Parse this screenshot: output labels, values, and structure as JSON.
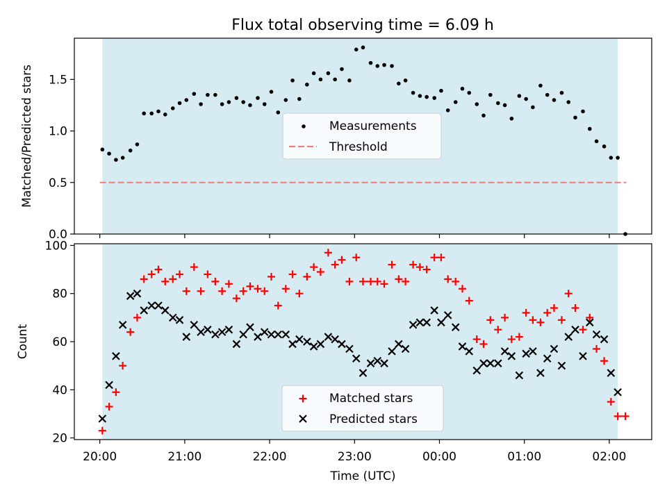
{
  "figure": {
    "title": "Flux total observing time = 6.09 h",
    "xlabel": "Time (UTC)"
  },
  "colors": {
    "observing_window": "#add8e6",
    "measurements": "#000000",
    "threshold": "#f08080",
    "matched": "#ff0000",
    "predicted": "#000000"
  },
  "chart_data": [
    {
      "type": "scatter",
      "title": "Flux total observing time = 6.09 h",
      "xlabel": "",
      "ylabel": "Matched/Predicted stars",
      "x_unit": "UTC time, hours since 20:00",
      "xlim": [
        -0.3,
        6.5
      ],
      "ylim": [
        0,
        1.9
      ],
      "yticks": [
        0.0,
        0.5,
        1.0,
        1.5
      ],
      "ytick_labels": [
        "0.0",
        "0.5",
        "1.0",
        "1.5"
      ],
      "xticks_no_labels": true,
      "shaded_span": [
        0.03,
        6.1
      ],
      "legend_position": "center",
      "legend": [
        "Measurements",
        "Threshold"
      ],
      "threshold": {
        "name": "Threshold",
        "value": 0.5,
        "x": [
          0.0,
          6.2
        ],
        "style": "dashed"
      },
      "series": [
        {
          "name": "Measurements",
          "marker": "dot",
          "x": [
            0.03,
            0.11,
            0.19,
            0.27,
            0.36,
            0.44,
            0.52,
            0.61,
            0.69,
            0.77,
            0.86,
            0.94,
            1.02,
            1.11,
            1.19,
            1.27,
            1.36,
            1.44,
            1.52,
            1.61,
            1.69,
            1.77,
            1.86,
            1.94,
            2.02,
            2.1,
            2.19,
            2.27,
            2.35,
            2.44,
            2.52,
            2.6,
            2.69,
            2.77,
            2.85,
            2.94,
            3.02,
            3.1,
            3.19,
            3.27,
            3.35,
            3.44,
            3.52,
            3.6,
            3.69,
            3.77,
            3.85,
            3.94,
            4.02,
            4.1,
            4.19,
            4.27,
            4.35,
            4.44,
            4.52,
            4.6,
            4.69,
            4.77,
            4.85,
            4.94,
            5.02,
            5.1,
            5.19,
            5.27,
            5.35,
            5.44,
            5.52,
            5.6,
            5.69,
            5.77,
            5.85,
            5.94,
            6.02,
            6.1,
            6.19
          ],
          "y": [
            0.82,
            0.78,
            0.72,
            0.74,
            0.81,
            0.87,
            1.17,
            1.17,
            1.19,
            1.16,
            1.22,
            1.27,
            1.3,
            1.36,
            1.26,
            1.35,
            1.35,
            1.26,
            1.28,
            1.32,
            1.28,
            1.25,
            1.32,
            1.26,
            1.38,
            1.18,
            1.3,
            1.49,
            1.31,
            1.45,
            1.56,
            1.5,
            1.56,
            1.5,
            1.6,
            1.49,
            1.79,
            1.81,
            1.66,
            1.63,
            1.64,
            1.63,
            1.46,
            1.49,
            1.37,
            1.34,
            1.33,
            1.32,
            1.39,
            1.2,
            1.28,
            1.41,
            1.37,
            1.26,
            1.15,
            1.35,
            1.27,
            1.25,
            1.12,
            1.34,
            1.31,
            1.23,
            1.44,
            1.35,
            1.3,
            1.37,
            1.28,
            1.13,
            1.19,
            1.02,
            0.9,
            0.85,
            0.74,
            0.74,
            0.0
          ]
        }
      ]
    },
    {
      "type": "scatter",
      "title": "",
      "xlabel": "Time (UTC)",
      "ylabel": "Count",
      "x_unit": "UTC time, hours since 20:00",
      "xlim": [
        -0.3,
        6.5
      ],
      "ylim": [
        19.3,
        100.7
      ],
      "yticks": [
        20,
        40,
        60,
        80,
        100
      ],
      "ytick_labels": [
        "20",
        "40",
        "60",
        "80",
        "100"
      ],
      "xticks": [
        0,
        1,
        2,
        3,
        4,
        5,
        6
      ],
      "xtick_labels": [
        "20:00",
        "21:00",
        "22:00",
        "23:00",
        "00:00",
        "01:00",
        "02:00"
      ],
      "shaded_span": [
        0.03,
        6.1
      ],
      "legend_position": "lower center",
      "legend": [
        "Matched stars",
        "Predicted stars"
      ],
      "series": [
        {
          "name": "Matched stars",
          "marker": "plus",
          "x": [
            0.03,
            0.11,
            0.19,
            0.27,
            0.36,
            0.44,
            0.52,
            0.61,
            0.69,
            0.77,
            0.86,
            0.94,
            1.02,
            1.11,
            1.19,
            1.27,
            1.36,
            1.44,
            1.52,
            1.61,
            1.69,
            1.77,
            1.86,
            1.94,
            2.02,
            2.1,
            2.19,
            2.27,
            2.35,
            2.44,
            2.52,
            2.6,
            2.69,
            2.77,
            2.85,
            2.94,
            3.02,
            3.1,
            3.19,
            3.27,
            3.35,
            3.44,
            3.52,
            3.6,
            3.69,
            3.77,
            3.85,
            3.94,
            4.02,
            4.1,
            4.19,
            4.27,
            4.35,
            4.44,
            4.52,
            4.6,
            4.69,
            4.77,
            4.85,
            4.94,
            5.02,
            5.1,
            5.19,
            5.27,
            5.35,
            5.44,
            5.52,
            5.6,
            5.69,
            5.77,
            5.85,
            5.94,
            6.02,
            6.1,
            6.19
          ],
          "y": [
            23,
            33,
            39,
            50,
            64,
            70,
            86,
            88,
            90,
            85,
            86,
            88,
            81,
            91,
            81,
            88,
            85,
            81,
            84,
            78,
            81,
            83,
            82,
            81,
            87,
            75,
            82,
            88,
            80,
            87,
            91,
            89,
            97,
            92,
            94,
            85,
            95,
            85,
            85,
            85,
            84,
            92,
            86,
            85,
            92,
            91,
            90,
            95,
            95,
            86,
            85,
            82,
            77,
            61,
            59,
            69,
            65,
            70,
            61,
            62,
            72,
            69,
            68,
            72,
            74,
            69,
            80,
            74,
            65,
            70,
            57,
            52,
            35,
            29,
            29
          ]
        },
        {
          "name": "Predicted stars",
          "marker": "x",
          "x": [
            0.03,
            0.11,
            0.19,
            0.27,
            0.36,
            0.44,
            0.52,
            0.61,
            0.69,
            0.77,
            0.86,
            0.94,
            1.02,
            1.11,
            1.19,
            1.27,
            1.36,
            1.44,
            1.52,
            1.61,
            1.69,
            1.77,
            1.86,
            1.94,
            2.02,
            2.1,
            2.19,
            2.27,
            2.35,
            2.44,
            2.52,
            2.6,
            2.69,
            2.77,
            2.85,
            2.94,
            3.02,
            3.1,
            3.19,
            3.27,
            3.35,
            3.44,
            3.52,
            3.6,
            3.69,
            3.77,
            3.85,
            3.94,
            4.02,
            4.1,
            4.19,
            4.27,
            4.35,
            4.44,
            4.52,
            4.6,
            4.69,
            4.77,
            4.85,
            4.94,
            5.02,
            5.1,
            5.19,
            5.27,
            5.35,
            5.44,
            5.52,
            5.6,
            5.69,
            5.77,
            5.85,
            5.94,
            6.02,
            6.1
          ],
          "y": [
            28,
            42,
            54,
            67,
            79,
            80,
            73,
            75,
            75,
            73,
            70,
            69,
            62,
            67,
            64,
            65,
            63,
            64,
            65,
            59,
            63,
            66,
            62,
            64,
            63,
            63,
            63,
            59,
            61,
            60,
            58,
            59,
            62,
            61,
            59,
            57,
            53,
            47,
            51,
            52,
            51,
            56,
            59,
            57,
            67,
            68,
            68,
            73,
            68,
            71,
            66,
            58,
            56,
            48,
            51,
            51,
            51,
            56,
            54,
            46,
            55,
            56,
            47,
            53,
            57,
            50,
            62,
            65,
            54,
            68,
            63,
            61,
            47,
            39
          ]
        }
      ]
    }
  ]
}
